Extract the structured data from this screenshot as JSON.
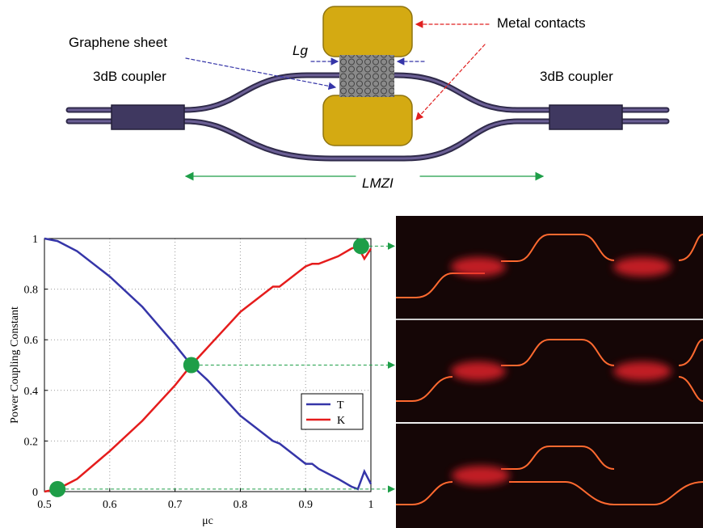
{
  "diagram": {
    "left_coupler": "3dB coupler",
    "right_coupler": "3dB coupler",
    "graphene": "Graphene sheet",
    "contacts": "Metal contacts",
    "graphene_length": "Lg",
    "mzi_length": "LMZI"
  },
  "chart_data": {
    "type": "line",
    "xlabel": "μc",
    "ylabel": "Power Coupling Constant",
    "x": [
      0.5,
      0.52,
      0.55,
      0.6,
      0.65,
      0.7,
      0.725,
      0.75,
      0.8,
      0.85,
      0.86,
      0.9,
      0.91,
      0.92,
      0.95,
      0.97,
      0.98,
      0.99,
      1.0
    ],
    "series": [
      {
        "name": "T",
        "color": "#3535a8",
        "values": [
          1,
          0.99,
          0.95,
          0.85,
          0.73,
          0.58,
          0.5,
          0.44,
          0.3,
          0.2,
          0.19,
          0.11,
          0.11,
          0.09,
          0.05,
          0.02,
          0.01,
          0.08,
          0.03
        ]
      },
      {
        "name": "K",
        "color": "#e51c1c",
        "values": [
          0,
          0.01,
          0.05,
          0.16,
          0.28,
          0.42,
          0.5,
          0.57,
          0.71,
          0.81,
          0.81,
          0.89,
          0.9,
          0.9,
          0.93,
          0.96,
          0.97,
          0.92,
          0.96
        ]
      }
    ],
    "points": {
      "color": "#1e9e48",
      "x": [
        0.52,
        0.725,
        0.985
      ],
      "y": [
        0.01,
        0.5,
        0.97
      ]
    },
    "xlim": [
      0.5,
      1
    ],
    "ylim": [
      0,
      1
    ],
    "xticks": [
      0.5,
      0.6,
      0.7,
      0.8,
      0.9,
      1
    ],
    "yticks": [
      0,
      0.2,
      0.4,
      0.6,
      0.8,
      1
    ],
    "grid": true,
    "legend": "lower right"
  }
}
